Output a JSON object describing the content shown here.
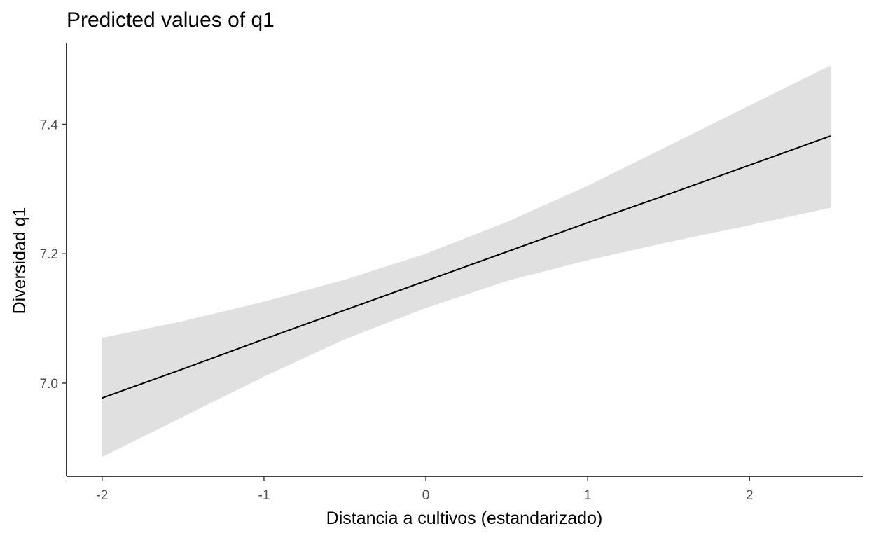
{
  "chart_data": {
    "type": "line",
    "title": "Predicted values of q1",
    "xlabel": "Distancia a cultivos (estandarizado)",
    "ylabel": "Diversidad q1",
    "xlim": [
      -2.22,
      2.7
    ],
    "ylim": [
      6.856,
      7.525
    ],
    "x_ticks": [
      -2,
      -1,
      0,
      1,
      2
    ],
    "x_tick_labels": [
      "-2",
      "-1",
      "0",
      "1",
      "2"
    ],
    "y_ticks": [
      7.0,
      7.2,
      7.4
    ],
    "y_tick_labels": [
      "7.0",
      "7.2",
      "7.4"
    ],
    "grid": false,
    "legend": "none",
    "colors": {
      "line": "#000000",
      "ribbon": "#e0e0e0",
      "axis": "#000000",
      "tick_text": "#4d4d4d"
    },
    "series": [
      {
        "x": [
          -2.0,
          -1.5,
          -1.0,
          -0.5,
          0.0,
          0.5,
          1.0,
          1.5,
          2.0,
          2.5
        ],
        "y": [
          6.977,
          7.022,
          7.068,
          7.113,
          7.158,
          7.203,
          7.248,
          7.292,
          7.337,
          7.382
        ],
        "lower": [
          6.886,
          6.948,
          7.01,
          7.068,
          7.116,
          7.158,
          7.19,
          7.218,
          7.244,
          7.271
        ],
        "upper": [
          7.07,
          7.096,
          7.126,
          7.16,
          7.2,
          7.249,
          7.305,
          7.367,
          7.429,
          7.491
        ]
      }
    ]
  }
}
